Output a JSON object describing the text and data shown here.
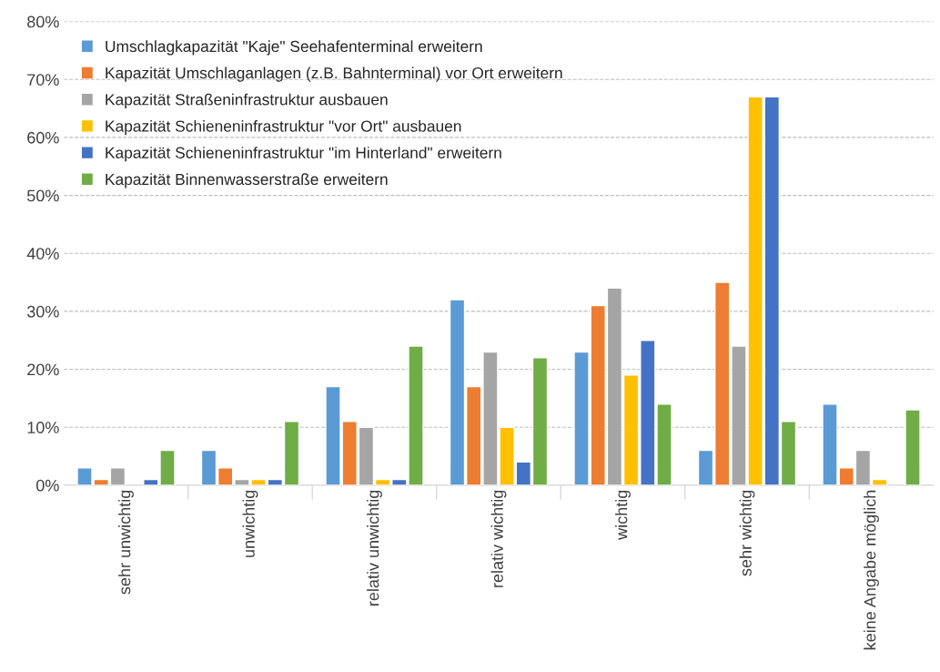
{
  "chart_data": {
    "type": "bar",
    "categories": [
      "sehr unwichtig",
      "unwichtig",
      "relativ unwichtig",
      "relativ wichtig",
      "wichtig",
      "sehr wichtig",
      "keine Angabe möglich"
    ],
    "series": [
      {
        "name": "Umschlagkapazität \"Kaje\" Seehafenterminal erweitern",
        "color": "#5b9bd5",
        "values": [
          3,
          6,
          17,
          32,
          23,
          6,
          14
        ]
      },
      {
        "name": "Kapazität Umschlaganlagen (z.B. Bahnterminal) vor Ort erweitern",
        "color": "#ed7d31",
        "values": [
          1,
          3,
          11,
          17,
          31,
          35,
          3
        ]
      },
      {
        "name": "Kapazität Straßeninfrastruktur ausbauen",
        "color": "#a5a5a5",
        "values": [
          3,
          1,
          10,
          23,
          34,
          24,
          6
        ]
      },
      {
        "name": "Kapazität Schieneninfrastruktur \"vor Ort\" ausbauen",
        "color": "#ffc000",
        "values": [
          null,
          1,
          1,
          10,
          19,
          67,
          1
        ]
      },
      {
        "name": "Kapazität Schieneninfrastruktur \"im Hinterland\" erweitern",
        "color": "#4472c4",
        "values": [
          1,
          1,
          1,
          4,
          25,
          67,
          null
        ]
      },
      {
        "name": "Kapazität Binnenwasserstraße erweitern",
        "color": "#70ad47",
        "values": [
          6,
          11,
          24,
          22,
          14,
          11,
          13
        ]
      }
    ],
    "ylim": [
      0,
      80
    ],
    "yticks": [
      {
        "value": 0,
        "label": "0%"
      },
      {
        "value": 10,
        "label": "10%"
      },
      {
        "value": 20,
        "label": "20%"
      },
      {
        "value": 30,
        "label": "30%"
      },
      {
        "value": 40,
        "label": "40%"
      },
      {
        "value": 50,
        "label": "50%"
      },
      {
        "value": 60,
        "label": "60%"
      },
      {
        "value": 70,
        "label": "70%"
      },
      {
        "value": 80,
        "label": "80%"
      }
    ],
    "grid": "y",
    "legend": "top left"
  }
}
